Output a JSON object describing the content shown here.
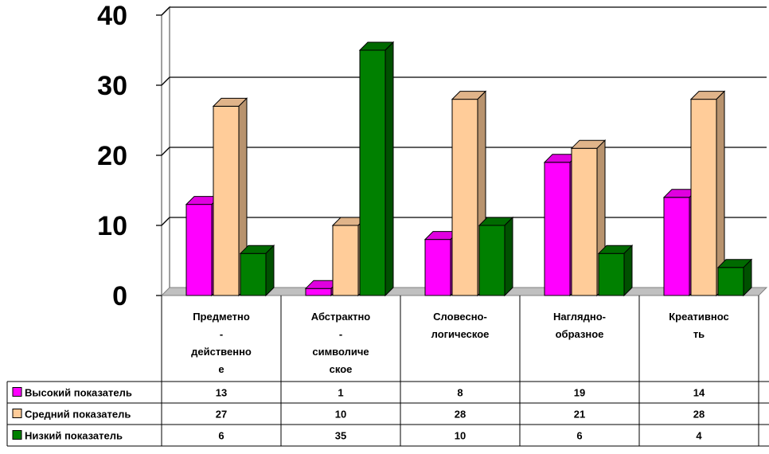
{
  "chart_data": {
    "type": "bar",
    "categories": [
      [
        "Предметно",
        "-",
        "действенно",
        "е"
      ],
      [
        "Абстрактно",
        "-",
        "символиче",
        "ское"
      ],
      [
        "Словесно-",
        "логическое"
      ],
      [
        "Наглядно-",
        "образное"
      ],
      [
        "Креативнос",
        "ть"
      ]
    ],
    "series": [
      {
        "name": "Высокий показатель",
        "values": [
          13,
          1,
          8,
          19,
          14
        ],
        "color": "#ff00ff",
        "side": "#b000b0",
        "top": "#e000e0"
      },
      {
        "name": "Средний показатель",
        "values": [
          27,
          10,
          28,
          21,
          28
        ],
        "color": "#ffcc99",
        "side": "#b8936e",
        "top": "#e0b48a"
      },
      {
        "name": "Низкий показатель",
        "values": [
          6,
          35,
          10,
          6,
          4
        ],
        "color": "#008000",
        "side": "#005000",
        "top": "#006a00"
      }
    ],
    "y_ticks": [
      "0",
      "10",
      "20",
      "30",
      "40"
    ],
    "ylim": [
      0,
      40
    ],
    "grid": true,
    "legend": "data-table"
  }
}
